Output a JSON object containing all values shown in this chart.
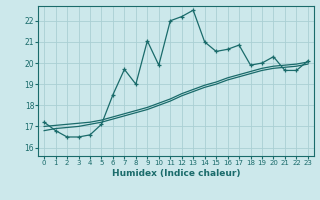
{
  "xlabel": "Humidex (Indice chaleur)",
  "xlim": [
    -0.5,
    23.5
  ],
  "ylim": [
    15.6,
    22.7
  ],
  "yticks": [
    16,
    17,
    18,
    19,
    20,
    21,
    22
  ],
  "xticks": [
    0,
    1,
    2,
    3,
    4,
    5,
    6,
    7,
    8,
    9,
    10,
    11,
    12,
    13,
    14,
    15,
    16,
    17,
    18,
    19,
    20,
    21,
    22,
    23
  ],
  "bg_color": "#cce8eb",
  "grid_color": "#aacfd4",
  "line_color": "#1a6b6b",
  "line1_y": [
    17.2,
    16.8,
    16.5,
    16.5,
    16.6,
    17.1,
    18.5,
    19.7,
    19.0,
    21.05,
    19.9,
    22.0,
    22.2,
    22.5,
    21.0,
    20.55,
    20.65,
    20.85,
    19.9,
    20.0,
    20.3,
    19.65,
    19.65,
    20.1
  ],
  "line2_y": [
    17.0,
    17.05,
    17.1,
    17.15,
    17.2,
    17.3,
    17.45,
    17.6,
    17.75,
    17.9,
    18.1,
    18.3,
    18.55,
    18.75,
    18.95,
    19.1,
    19.3,
    19.45,
    19.6,
    19.75,
    19.85,
    19.9,
    19.95,
    20.05
  ],
  "line3_y": [
    16.8,
    16.9,
    16.95,
    17.0,
    17.1,
    17.2,
    17.35,
    17.5,
    17.65,
    17.8,
    18.0,
    18.2,
    18.45,
    18.65,
    18.85,
    19.0,
    19.2,
    19.35,
    19.5,
    19.65,
    19.75,
    19.8,
    19.85,
    19.95
  ]
}
